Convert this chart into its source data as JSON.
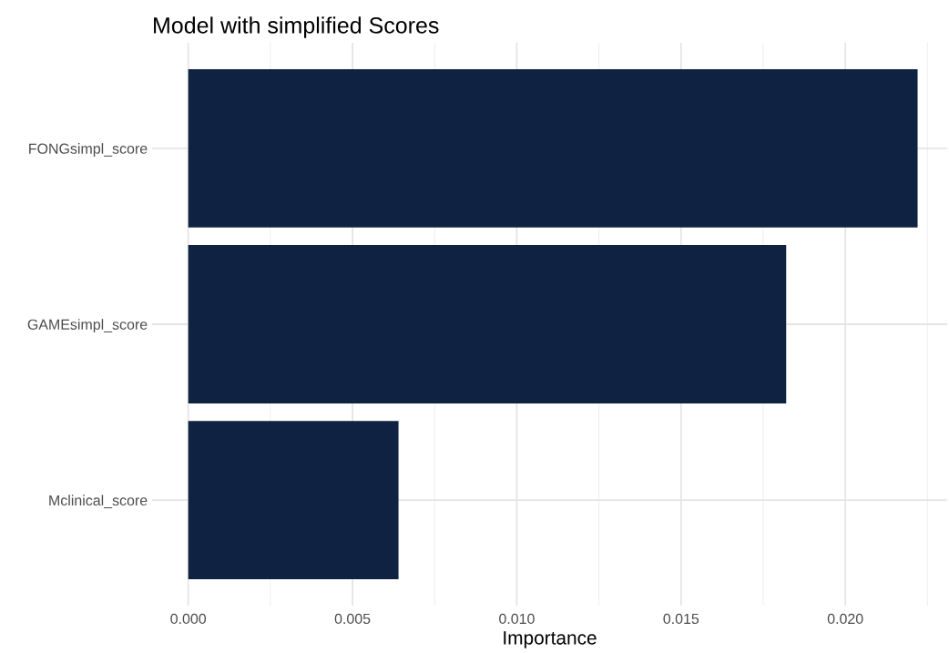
{
  "chart_data": {
    "type": "bar",
    "orientation": "horizontal",
    "title": "Model with simplified Scores",
    "xlabel": "Importance",
    "categories": [
      "FONGsimpl_score",
      "GAMEsimpl_score",
      "Mclinical_score"
    ],
    "values": [
      0.0222,
      0.0182,
      0.0064
    ],
    "color": "#0f2242",
    "xlim": [
      -0.0011,
      0.0231
    ],
    "xticks": [
      {
        "value": 0,
        "label": "0.000"
      },
      {
        "value": 0.0025,
        "label": null
      },
      {
        "value": 0.005,
        "label": "0.005"
      },
      {
        "value": 0.0075,
        "label": null
      },
      {
        "value": 0.01,
        "label": "0.010"
      },
      {
        "value": 0.0125,
        "label": null
      },
      {
        "value": 0.015,
        "label": "0.015"
      },
      {
        "value": 0.0175,
        "label": null
      },
      {
        "value": 0.02,
        "label": "0.020"
      },
      {
        "value": 0.0225,
        "label": null
      }
    ],
    "grid": true
  }
}
